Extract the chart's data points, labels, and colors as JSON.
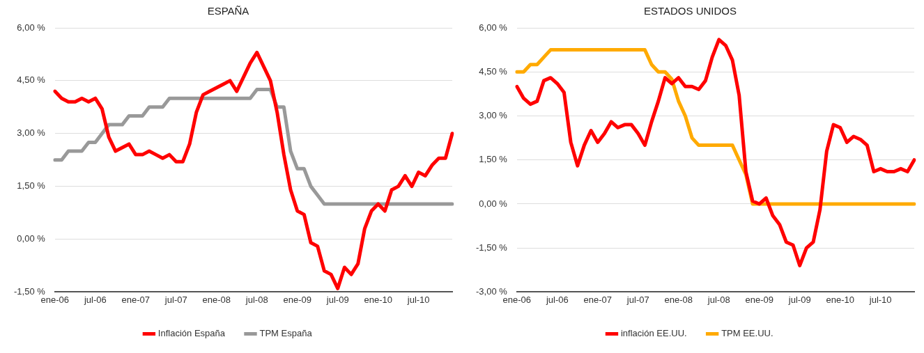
{
  "chart_data": [
    {
      "type": "line",
      "title": "ESPAÑA",
      "categories": [
        "ene-06",
        null,
        null,
        null,
        null,
        null,
        "jul-06",
        null,
        null,
        null,
        null,
        null,
        "ene-07",
        null,
        null,
        null,
        null,
        null,
        "jul-07",
        null,
        null,
        null,
        null,
        null,
        "ene-08",
        null,
        null,
        null,
        null,
        null,
        "jul-08",
        null,
        null,
        null,
        null,
        null,
        "ene-09",
        null,
        null,
        null,
        null,
        null,
        "jul-09",
        null,
        null,
        null,
        null,
        null,
        "ene-10",
        null,
        null,
        null,
        null,
        null,
        "jul-10",
        null,
        null,
        null,
        null,
        null
      ],
      "series": [
        {
          "name": "Inflación España",
          "color": "#ff0000",
          "values": [
            4.2,
            4.0,
            3.9,
            3.9,
            4.0,
            3.9,
            4.0,
            3.7,
            2.9,
            2.5,
            2.6,
            2.7,
            2.4,
            2.4,
            2.5,
            2.4,
            2.3,
            2.4,
            2.2,
            2.2,
            2.7,
            3.6,
            4.1,
            4.2,
            4.3,
            4.4,
            4.5,
            4.2,
            4.6,
            5.0,
            5.3,
            4.9,
            4.5,
            3.6,
            2.4,
            1.4,
            0.8,
            0.7,
            -0.1,
            -0.2,
            -0.9,
            -1.0,
            -1.4,
            -0.8,
            -1.0,
            -0.7,
            0.3,
            0.8,
            1.0,
            0.8,
            1.4,
            1.5,
            1.8,
            1.5,
            1.9,
            1.8,
            2.1,
            2.3,
            2.3,
            3.0
          ]
        },
        {
          "name": "TPM España",
          "color": "#999999",
          "values": [
            2.25,
            2.25,
            2.5,
            2.5,
            2.5,
            2.75,
            2.75,
            3.0,
            3.25,
            3.25,
            3.25,
            3.5,
            3.5,
            3.5,
            3.75,
            3.75,
            3.75,
            4.0,
            4.0,
            4.0,
            4.0,
            4.0,
            4.0,
            4.0,
            4.0,
            4.0,
            4.0,
            4.0,
            4.0,
            4.0,
            4.25,
            4.25,
            4.25,
            3.75,
            3.75,
            2.5,
            2.0,
            2.0,
            1.5,
            1.25,
            1.0,
            1.0,
            1.0,
            1.0,
            1.0,
            1.0,
            1.0,
            1.0,
            1.0,
            1.0,
            1.0,
            1.0,
            1.0,
            1.0,
            1.0,
            1.0,
            1.0,
            1.0,
            1.0,
            1.0
          ]
        }
      ],
      "ylim": [
        -1.5,
        6
      ],
      "yticks": [
        {
          "value": -1.5,
          "label": "-1,50 %"
        },
        {
          "value": 0,
          "label": "0,00 %"
        },
        {
          "value": 1.5,
          "label": "1,50 %"
        },
        {
          "value": 3,
          "label": "3,00 %"
        },
        {
          "value": 4.5,
          "label": "4,50 %"
        },
        {
          "value": 6,
          "label": "6,00 %"
        }
      ],
      "grid": "y",
      "legend": "bottom",
      "marker": "none",
      "line_style": "solid"
    },
    {
      "type": "line",
      "title": "ESTADOS UNIDOS",
      "categories": [
        "ene-06",
        null,
        null,
        null,
        null,
        null,
        "jul-06",
        null,
        null,
        null,
        null,
        null,
        "ene-07",
        null,
        null,
        null,
        null,
        null,
        "jul-07",
        null,
        null,
        null,
        null,
        null,
        "ene-08",
        null,
        null,
        null,
        null,
        null,
        "jul-08",
        null,
        null,
        null,
        null,
        null,
        "ene-09",
        null,
        null,
        null,
        null,
        null,
        "jul-09",
        null,
        null,
        null,
        null,
        null,
        "ene-10",
        null,
        null,
        null,
        null,
        null,
        "jul-10",
        null,
        null,
        null,
        null,
        null
      ],
      "series": [
        {
          "name": "inflación EE.UU.",
          "color": "#ff0000",
          "values": [
            4.0,
            3.6,
            3.4,
            3.5,
            4.2,
            4.3,
            4.1,
            3.8,
            2.1,
            1.3,
            2.0,
            2.5,
            2.1,
            2.4,
            2.8,
            2.6,
            2.7,
            2.7,
            2.4,
            2.0,
            2.8,
            3.5,
            4.3,
            4.1,
            4.3,
            4.0,
            4.0,
            3.9,
            4.2,
            5.0,
            5.6,
            5.4,
            4.9,
            3.7,
            1.1,
            0.1,
            0.0,
            0.2,
            -0.4,
            -0.7,
            -1.3,
            -1.4,
            -2.1,
            -1.5,
            -1.3,
            -0.2,
            1.8,
            2.7,
            2.6,
            2.1,
            2.3,
            2.2,
            2.0,
            1.1,
            1.2,
            1.1,
            1.1,
            1.2,
            1.1,
            1.5
          ]
        },
        {
          "name": "TPM EE.UU.",
          "color": "#ffaa00",
          "values": [
            4.5,
            4.5,
            4.75,
            4.75,
            5.0,
            5.25,
            5.25,
            5.25,
            5.25,
            5.25,
            5.25,
            5.25,
            5.25,
            5.25,
            5.25,
            5.25,
            5.25,
            5.25,
            5.25,
            5.25,
            4.75,
            4.5,
            4.5,
            4.25,
            3.5,
            3.0,
            2.25,
            2.0,
            2.0,
            2.0,
            2.0,
            2.0,
            2.0,
            1.5,
            1.0,
            0.0,
            0.0,
            0.0,
            0.0,
            0.0,
            0.0,
            0.0,
            0.0,
            0.0,
            0.0,
            0.0,
            0.0,
            0.0,
            0.0,
            0.0,
            0.0,
            0.0,
            0.0,
            0.0,
            0.0,
            0.0,
            0.0,
            0.0,
            0.0,
            0.0
          ]
        }
      ],
      "ylim": [
        -3,
        6
      ],
      "yticks": [
        {
          "value": -3,
          "label": "-3,00 %"
        },
        {
          "value": -1.5,
          "label": "-1,50 %"
        },
        {
          "value": 0,
          "label": "0,00 %"
        },
        {
          "value": 1.5,
          "label": "1,50 %"
        },
        {
          "value": 3,
          "label": "3,00 %"
        },
        {
          "value": 4.5,
          "label": "4,50 %"
        },
        {
          "value": 6,
          "label": "6,00 %"
        }
      ],
      "grid": "y",
      "legend": "bottom",
      "marker": "none",
      "line_style": "solid"
    }
  ]
}
